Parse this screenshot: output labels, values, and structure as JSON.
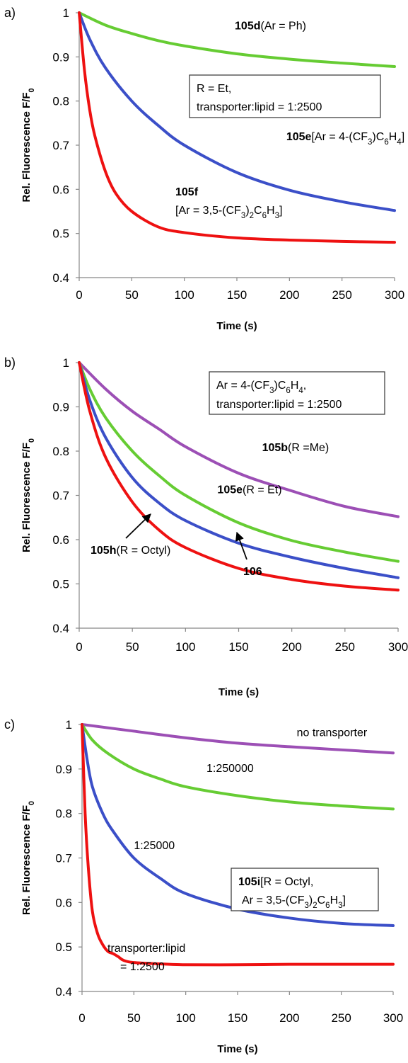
{
  "chart_data": [
    {
      "type": "line",
      "panel_label": "a)",
      "xlabel": "Time (s)",
      "ylabel": "Rel. Fluorescence F/F0",
      "xlim": [
        0,
        300
      ],
      "ylim": [
        0.4,
        1.0
      ],
      "xticks": [
        "0",
        "50",
        "100",
        "150",
        "200",
        "250",
        "300"
      ],
      "yticks": [
        "0.4",
        "0.5",
        "0.6",
        "0.7",
        "0.8",
        "0.9",
        "1"
      ],
      "legend_box": [
        "R = Et,",
        "transporter:lipid = 1:2500"
      ],
      "series": [
        {
          "name": "105d(Ar = Ph)",
          "color": "#66cc33",
          "x": [
            0,
            25,
            50,
            75,
            100,
            150,
            200,
            250,
            300
          ],
          "y": [
            1.0,
            0.972,
            0.953,
            0.937,
            0.925,
            0.907,
            0.895,
            0.886,
            0.878
          ]
        },
        {
          "name": "105e[Ar = 4-(CF3)C6H4]",
          "color": "#3b4fc8",
          "x": [
            0,
            10,
            25,
            50,
            75,
            100,
            150,
            200,
            250,
            300
          ],
          "y": [
            1.0,
            0.94,
            0.875,
            0.8,
            0.745,
            0.7,
            0.638,
            0.598,
            0.572,
            0.552
          ]
        },
        {
          "name": "105f [Ar = 3,5-(CF3)2C6H3]",
          "color": "#ee1111",
          "x": [
            0,
            5,
            10,
            15,
            25,
            35,
            50,
            75,
            100,
            150,
            200,
            250,
            300
          ],
          "y": [
            1.0,
            0.87,
            0.78,
            0.72,
            0.64,
            0.59,
            0.55,
            0.515,
            0.502,
            0.49,
            0.485,
            0.482,
            0.48
          ]
        }
      ]
    },
    {
      "type": "line",
      "panel_label": "b)",
      "xlabel": "Time (s)",
      "ylabel": "Rel. Fluorescence F/F0",
      "xlim": [
        0,
        300
      ],
      "ylim": [
        0.4,
        1.0
      ],
      "xticks": [
        "0",
        "50",
        "100",
        "150",
        "200",
        "250",
        "300"
      ],
      "yticks": [
        "0.4",
        "0.5",
        "0.6",
        "0.7",
        "0.8",
        "0.9",
        "1"
      ],
      "legend_box": [
        "Ar = 4-(CF3)C6H4,",
        "transporter:lipid = 1:2500"
      ],
      "series": [
        {
          "name": "105b(R =Me)",
          "color": "#9c4fb5",
          "x": [
            0,
            25,
            50,
            75,
            100,
            150,
            200,
            250,
            300
          ],
          "y": [
            1.0,
            0.94,
            0.89,
            0.85,
            0.81,
            0.75,
            0.71,
            0.675,
            0.652
          ]
        },
        {
          "name": "105e(R = Et)",
          "color": "#66cc33",
          "x": [
            0,
            10,
            25,
            50,
            75,
            100,
            150,
            200,
            250,
            300
          ],
          "y": [
            1.0,
            0.94,
            0.875,
            0.8,
            0.745,
            0.7,
            0.638,
            0.598,
            0.572,
            0.551
          ]
        },
        {
          "name": "106",
          "color": "#3b4fc8",
          "x": [
            0,
            10,
            25,
            50,
            75,
            100,
            150,
            200,
            250,
            300
          ],
          "y": [
            1.0,
            0.915,
            0.83,
            0.74,
            0.683,
            0.643,
            0.592,
            0.56,
            0.535,
            0.514
          ]
        },
        {
          "name": "105h(R = Octyl)",
          "color": "#ee1111",
          "x": [
            0,
            10,
            25,
            50,
            75,
            100,
            150,
            200,
            250,
            300
          ],
          "y": [
            1.0,
            0.89,
            0.785,
            0.685,
            0.622,
            0.582,
            0.535,
            0.51,
            0.495,
            0.486
          ]
        }
      ],
      "annotations": [
        {
          "text": "105h (R = Octyl)",
          "arrow_to": [
            67,
            0.63
          ]
        },
        {
          "text": "106",
          "arrow_to": [
            150,
            0.6
          ]
        }
      ]
    },
    {
      "type": "line",
      "panel_label": "c)",
      "xlabel": "Time (s)",
      "ylabel": "Rel. Fluorescence F/F0",
      "xlim": [
        0,
        300
      ],
      "ylim": [
        0.4,
        1.0
      ],
      "xticks": [
        "0",
        "50",
        "100",
        "150",
        "200",
        "250",
        "300"
      ],
      "yticks": [
        "0.4",
        "0.5",
        "0.6",
        "0.7",
        "0.8",
        "0.9",
        "1"
      ],
      "legend_box": [
        "105i[R = Octyl,",
        "Ar = 3,5-(CF3)2C6H3]"
      ],
      "series": [
        {
          "name": "no transporter",
          "color": "#9c4fb5",
          "x": [
            0,
            50,
            100,
            150,
            200,
            250,
            300
          ],
          "y": [
            1.0,
            0.985,
            0.97,
            0.958,
            0.95,
            0.943,
            0.936
          ]
        },
        {
          "name": "1:250000",
          "color": "#66cc33",
          "x": [
            0,
            10,
            25,
            50,
            75,
            100,
            150,
            200,
            250,
            300
          ],
          "y": [
            1.0,
            0.965,
            0.935,
            0.9,
            0.878,
            0.86,
            0.84,
            0.826,
            0.817,
            0.81
          ]
        },
        {
          "name": "1:25000",
          "color": "#3b4fc8",
          "x": [
            0,
            5,
            10,
            20,
            30,
            50,
            75,
            100,
            150,
            200,
            250,
            300
          ],
          "y": [
            1.0,
            0.92,
            0.86,
            0.8,
            0.76,
            0.7,
            0.655,
            0.62,
            0.585,
            0.565,
            0.553,
            0.548
          ]
        },
        {
          "name": "transporter:lipid = 1:2500",
          "color": "#ee1111",
          "x": [
            0,
            3,
            6,
            10,
            15,
            20,
            25,
            30,
            35,
            40,
            50,
            75,
            100,
            150,
            200,
            250,
            300
          ],
          "y": [
            1.0,
            0.8,
            0.68,
            0.58,
            0.53,
            0.505,
            0.49,
            0.485,
            0.478,
            0.47,
            0.465,
            0.462,
            0.46,
            0.46,
            0.461,
            0.461,
            0.461
          ]
        }
      ]
    }
  ]
}
